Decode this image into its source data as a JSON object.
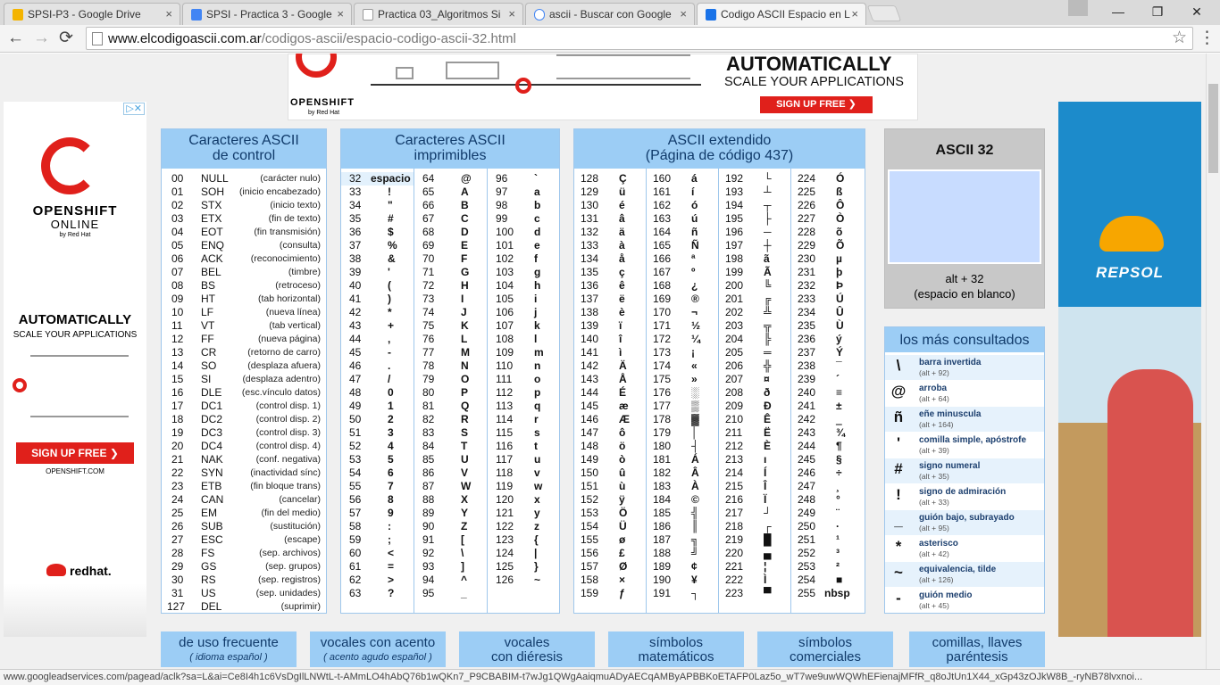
{
  "tabs": [
    {
      "label": "SPSI-P3 - Google Drive",
      "color": "#f4b400"
    },
    {
      "label": "SPSI - Practica 3 - Google",
      "color": "#4285f4"
    },
    {
      "label": "Practica 03_Algoritmos Si",
      "color": "#ffffff"
    },
    {
      "label": "ascii - Buscar con Google",
      "color": "#ffffff"
    },
    {
      "label": "Codigo ASCII Espacio en L",
      "color": "#1a73e8"
    }
  ],
  "tab_close": "×",
  "window": {
    "minimize": "—",
    "restore": "❐",
    "close": "✕"
  },
  "nav": {
    "back": "←",
    "forward": "→",
    "reload": "⟳",
    "menu": "⋮"
  },
  "url": {
    "host": "www.elcodigoascii.com.ar",
    "path": "/codigos-ascii/espacio-codigo-ascii-32.html"
  },
  "status_url": "www.googleadservices.com/pagead/aclk?sa=L&ai=Ce8I4h1c6VsDgIlLNWtL-t-AMmLO4hAbQ76b1wQKn7_P9CBABIM-t7wJg1QWgAaiqmuADyAECqAMByAPBBKoETAFP0Laz5o_wT7we9uwWQWhEFienajMFfR_q8oJtUn1X44_xGp43zOJkW8B_-ryNB78lvxnoi...",
  "banner": {
    "brand": "OPENSHIFT",
    "by": "by Red Hat",
    "headline": "AUTOMATICALLY",
    "sub": "SCALE YOUR APPLICATIONS",
    "cta": "SIGN UP FREE  ❯"
  },
  "ad_left": {
    "brand": "OPENSHIFT",
    "online": "ONLINE",
    "by": "by Red Hat",
    "headline": "AUTOMATICALLY",
    "sub": "SCALE YOUR APPLICATIONS",
    "cta": "SIGN UP FREE  ❯",
    "site": "OPENSHIFT.COM",
    "redhat": "redhat."
  },
  "ad_right": {
    "brand": "REPSOL"
  },
  "adchoices": "▷✕",
  "control": {
    "title1": "Caracteres ASCII",
    "title2": "de control",
    "rows": [
      [
        "00",
        "NULL",
        "(carácter nulo)"
      ],
      [
        "01",
        "SOH",
        "(inicio encabezado)"
      ],
      [
        "02",
        "STX",
        "(inicio texto)"
      ],
      [
        "03",
        "ETX",
        "(fin de texto)"
      ],
      [
        "04",
        "EOT",
        "(fin transmisión)"
      ],
      [
        "05",
        "ENQ",
        "(consulta)"
      ],
      [
        "06",
        "ACK",
        "(reconocimiento)"
      ],
      [
        "07",
        "BEL",
        "(timbre)"
      ],
      [
        "08",
        "BS",
        "(retroceso)"
      ],
      [
        "09",
        "HT",
        "(tab horizontal)"
      ],
      [
        "10",
        "LF",
        "(nueva línea)"
      ],
      [
        "11",
        "VT",
        "(tab vertical)"
      ],
      [
        "12",
        "FF",
        "(nueva página)"
      ],
      [
        "13",
        "CR",
        "(retorno de carro)"
      ],
      [
        "14",
        "SO",
        "(desplaza afuera)"
      ],
      [
        "15",
        "SI",
        "(desplaza adentro)"
      ],
      [
        "16",
        "DLE",
        "(esc.vínculo datos)"
      ],
      [
        "17",
        "DC1",
        "(control disp. 1)"
      ],
      [
        "18",
        "DC2",
        "(control disp. 2)"
      ],
      [
        "19",
        "DC3",
        "(control disp. 3)"
      ],
      [
        "20",
        "DC4",
        "(control disp. 4)"
      ],
      [
        "21",
        "NAK",
        "(conf. negativa)"
      ],
      [
        "22",
        "SYN",
        "(inactividad sínc)"
      ],
      [
        "23",
        "ETB",
        "(fin bloque trans)"
      ],
      [
        "24",
        "CAN",
        "(cancelar)"
      ],
      [
        "25",
        "EM",
        "(fin del medio)"
      ],
      [
        "26",
        "SUB",
        "(sustitución)"
      ],
      [
        "27",
        "ESC",
        "(escape)"
      ],
      [
        "28",
        "FS",
        "(sep. archivos)"
      ],
      [
        "29",
        "GS",
        "(sep. grupos)"
      ],
      [
        "30",
        "RS",
        "(sep. registros)"
      ],
      [
        "31",
        "US",
        "(sep. unidades)"
      ],
      [
        "127",
        "DEL",
        "(suprimir)"
      ]
    ]
  },
  "printable": {
    "title1": "Caracteres ASCII",
    "title2": "imprimibles",
    "cols": [
      [
        [
          "32",
          "espacio"
        ],
        [
          "33",
          "!"
        ],
        [
          "34",
          "\""
        ],
        [
          "35",
          "#"
        ],
        [
          "36",
          "$"
        ],
        [
          "37",
          "%"
        ],
        [
          "38",
          "&"
        ],
        [
          "39",
          "'"
        ],
        [
          "40",
          "("
        ],
        [
          "41",
          ")"
        ],
        [
          "42",
          "*"
        ],
        [
          "43",
          "+"
        ],
        [
          "44",
          ","
        ],
        [
          "45",
          "-"
        ],
        [
          "46",
          "."
        ],
        [
          "47",
          "/"
        ],
        [
          "48",
          "0"
        ],
        [
          "49",
          "1"
        ],
        [
          "50",
          "2"
        ],
        [
          "51",
          "3"
        ],
        [
          "52",
          "4"
        ],
        [
          "53",
          "5"
        ],
        [
          "54",
          "6"
        ],
        [
          "55",
          "7"
        ],
        [
          "56",
          "8"
        ],
        [
          "57",
          "9"
        ],
        [
          "58",
          ":"
        ],
        [
          "59",
          ";"
        ],
        [
          "60",
          "<"
        ],
        [
          "61",
          "="
        ],
        [
          "62",
          ">"
        ],
        [
          "63",
          "?"
        ]
      ],
      [
        [
          "64",
          "@"
        ],
        [
          "65",
          "A"
        ],
        [
          "66",
          "B"
        ],
        [
          "67",
          "C"
        ],
        [
          "68",
          "D"
        ],
        [
          "69",
          "E"
        ],
        [
          "70",
          "F"
        ],
        [
          "71",
          "G"
        ],
        [
          "72",
          "H"
        ],
        [
          "73",
          "I"
        ],
        [
          "74",
          "J"
        ],
        [
          "75",
          "K"
        ],
        [
          "76",
          "L"
        ],
        [
          "77",
          "M"
        ],
        [
          "78",
          "N"
        ],
        [
          "79",
          "O"
        ],
        [
          "80",
          "P"
        ],
        [
          "81",
          "Q"
        ],
        [
          "82",
          "R"
        ],
        [
          "83",
          "S"
        ],
        [
          "84",
          "T"
        ],
        [
          "85",
          "U"
        ],
        [
          "86",
          "V"
        ],
        [
          "87",
          "W"
        ],
        [
          "88",
          "X"
        ],
        [
          "89",
          "Y"
        ],
        [
          "90",
          "Z"
        ],
        [
          "91",
          "["
        ],
        [
          "92",
          "\\"
        ],
        [
          "93",
          "]"
        ],
        [
          "94",
          "^"
        ],
        [
          "95",
          "_"
        ]
      ],
      [
        [
          "96",
          "`"
        ],
        [
          "97",
          "a"
        ],
        [
          "98",
          "b"
        ],
        [
          "99",
          "c"
        ],
        [
          "100",
          "d"
        ],
        [
          "101",
          "e"
        ],
        [
          "102",
          "f"
        ],
        [
          "103",
          "g"
        ],
        [
          "104",
          "h"
        ],
        [
          "105",
          "i"
        ],
        [
          "106",
          "j"
        ],
        [
          "107",
          "k"
        ],
        [
          "108",
          "l"
        ],
        [
          "109",
          "m"
        ],
        [
          "110",
          "n"
        ],
        [
          "111",
          "o"
        ],
        [
          "112",
          "p"
        ],
        [
          "113",
          "q"
        ],
        [
          "114",
          "r"
        ],
        [
          "115",
          "s"
        ],
        [
          "116",
          "t"
        ],
        [
          "117",
          "u"
        ],
        [
          "118",
          "v"
        ],
        [
          "119",
          "w"
        ],
        [
          "120",
          "x"
        ],
        [
          "121",
          "y"
        ],
        [
          "122",
          "z"
        ],
        [
          "123",
          "{"
        ],
        [
          "124",
          "|"
        ],
        [
          "125",
          "}"
        ],
        [
          "126",
          "~"
        ]
      ]
    ]
  },
  "extended": {
    "title1": "ASCII extendido",
    "title2": "(Página de código 437)",
    "cols": [
      [
        [
          "128",
          "Ç"
        ],
        [
          "129",
          "ü"
        ],
        [
          "130",
          "é"
        ],
        [
          "131",
          "â"
        ],
        [
          "132",
          "ä"
        ],
        [
          "133",
          "à"
        ],
        [
          "134",
          "å"
        ],
        [
          "135",
          "ç"
        ],
        [
          "136",
          "ê"
        ],
        [
          "137",
          "ë"
        ],
        [
          "138",
          "è"
        ],
        [
          "139",
          "ï"
        ],
        [
          "140",
          "î"
        ],
        [
          "141",
          "ì"
        ],
        [
          "142",
          "Ä"
        ],
        [
          "143",
          "Å"
        ],
        [
          "144",
          "É"
        ],
        [
          "145",
          "æ"
        ],
        [
          "146",
          "Æ"
        ],
        [
          "147",
          "ô"
        ],
        [
          "148",
          "ö"
        ],
        [
          "149",
          "ò"
        ],
        [
          "150",
          "û"
        ],
        [
          "151",
          "ù"
        ],
        [
          "152",
          "ÿ"
        ],
        [
          "153",
          "Ö"
        ],
        [
          "154",
          "Ü"
        ],
        [
          "155",
          "ø"
        ],
        [
          "156",
          "£"
        ],
        [
          "157",
          "Ø"
        ],
        [
          "158",
          "×"
        ],
        [
          "159",
          "ƒ"
        ]
      ],
      [
        [
          "160",
          "á"
        ],
        [
          "161",
          "í"
        ],
        [
          "162",
          "ó"
        ],
        [
          "163",
          "ú"
        ],
        [
          "164",
          "ñ"
        ],
        [
          "165",
          "Ñ"
        ],
        [
          "166",
          "ª"
        ],
        [
          "167",
          "º"
        ],
        [
          "168",
          "¿"
        ],
        [
          "169",
          "®"
        ],
        [
          "170",
          "¬"
        ],
        [
          "171",
          "½"
        ],
        [
          "172",
          "¼"
        ],
        [
          "173",
          "¡"
        ],
        [
          "174",
          "«"
        ],
        [
          "175",
          "»"
        ],
        [
          "176",
          "░"
        ],
        [
          "177",
          "▒"
        ],
        [
          "178",
          "▓"
        ],
        [
          "179",
          "│"
        ],
        [
          "180",
          "┤"
        ],
        [
          "181",
          "Á"
        ],
        [
          "182",
          "Â"
        ],
        [
          "183",
          "À"
        ],
        [
          "184",
          "©"
        ],
        [
          "185",
          "╣"
        ],
        [
          "186",
          "║"
        ],
        [
          "187",
          "╗"
        ],
        [
          "188",
          "╝"
        ],
        [
          "189",
          "¢"
        ],
        [
          "190",
          "¥"
        ],
        [
          "191",
          "┐"
        ]
      ],
      [
        [
          "192",
          "└"
        ],
        [
          "193",
          "┴"
        ],
        [
          "194",
          "┬"
        ],
        [
          "195",
          "├"
        ],
        [
          "196",
          "─"
        ],
        [
          "197",
          "┼"
        ],
        [
          "198",
          "ã"
        ],
        [
          "199",
          "Ã"
        ],
        [
          "200",
          "╚"
        ],
        [
          "201",
          "╔"
        ],
        [
          "202",
          "╩"
        ],
        [
          "203",
          "╦"
        ],
        [
          "204",
          "╠"
        ],
        [
          "205",
          "═"
        ],
        [
          "206",
          "╬"
        ],
        [
          "207",
          "¤"
        ],
        [
          "208",
          "ð"
        ],
        [
          "209",
          "Ð"
        ],
        [
          "210",
          "Ê"
        ],
        [
          "211",
          "Ë"
        ],
        [
          "212",
          "È"
        ],
        [
          "213",
          "ı"
        ],
        [
          "214",
          "Í"
        ],
        [
          "215",
          "Î"
        ],
        [
          "216",
          "Ï"
        ],
        [
          "217",
          "┘"
        ],
        [
          "218",
          "┌"
        ],
        [
          "219",
          "█"
        ],
        [
          "220",
          "▄"
        ],
        [
          "221",
          "¦"
        ],
        [
          "222",
          "Ì"
        ],
        [
          "223",
          "▀"
        ]
      ],
      [
        [
          "224",
          "Ó"
        ],
        [
          "225",
          "ß"
        ],
        [
          "226",
          "Ô"
        ],
        [
          "227",
          "Ò"
        ],
        [
          "228",
          "õ"
        ],
        [
          "229",
          "Õ"
        ],
        [
          "230",
          "µ"
        ],
        [
          "231",
          "þ"
        ],
        [
          "232",
          "Þ"
        ],
        [
          "233",
          "Ú"
        ],
        [
          "234",
          "Û"
        ],
        [
          "235",
          "Ù"
        ],
        [
          "236",
          "ý"
        ],
        [
          "237",
          "Ý"
        ],
        [
          "238",
          "¯"
        ],
        [
          "239",
          "´"
        ],
        [
          "240",
          "≡"
        ],
        [
          "241",
          "±"
        ],
        [
          "242",
          "‗"
        ],
        [
          "243",
          "¾"
        ],
        [
          "244",
          "¶"
        ],
        [
          "245",
          "§"
        ],
        [
          "246",
          "÷"
        ],
        [
          "247",
          "¸"
        ],
        [
          "248",
          "°"
        ],
        [
          "249",
          "¨"
        ],
        [
          "250",
          "·"
        ],
        [
          "251",
          "¹"
        ],
        [
          "252",
          "³"
        ],
        [
          "253",
          "²"
        ],
        [
          "254",
          "■"
        ],
        [
          "255",
          "nbsp"
        ]
      ]
    ]
  },
  "ascii32": {
    "title": "ASCII 32",
    "line1": "alt + 32",
    "line2": "(espacio en blanco)"
  },
  "popular": {
    "title": "los más consultados",
    "items": [
      [
        "\\",
        "barra invertida",
        "(alt + 92)"
      ],
      [
        "@",
        "arroba",
        "(alt + 64)"
      ],
      [
        "ñ",
        "eñe minuscula",
        "(alt + 164)"
      ],
      [
        "'",
        "comilla simple, apóstrofe",
        "(alt + 39)"
      ],
      [
        "#",
        "signo numeral",
        "(alt + 35)"
      ],
      [
        "!",
        "signo de admiración",
        "(alt + 33)"
      ],
      [
        "_",
        "guión bajo, subrayado",
        "(alt + 95)"
      ],
      [
        "*",
        "asterisco",
        "(alt + 42)"
      ],
      [
        "~",
        "equivalencia, tilde",
        "(alt + 126)"
      ],
      [
        "-",
        "guión medio",
        "(alt + 45)"
      ]
    ]
  },
  "bottom": [
    {
      "l1": "de uso frecuente",
      "l2": "( idioma español )"
    },
    {
      "l1": "vocales con acento",
      "l2": "( acento agudo español )"
    },
    {
      "l1": "vocales",
      "l2": "con diéresis"
    },
    {
      "l1": "símbolos",
      "l2": "matemáticos"
    },
    {
      "l1": "símbolos",
      "l2": "comerciales"
    },
    {
      "l1": "comillas, llaves",
      "l2": "paréntesis"
    }
  ]
}
